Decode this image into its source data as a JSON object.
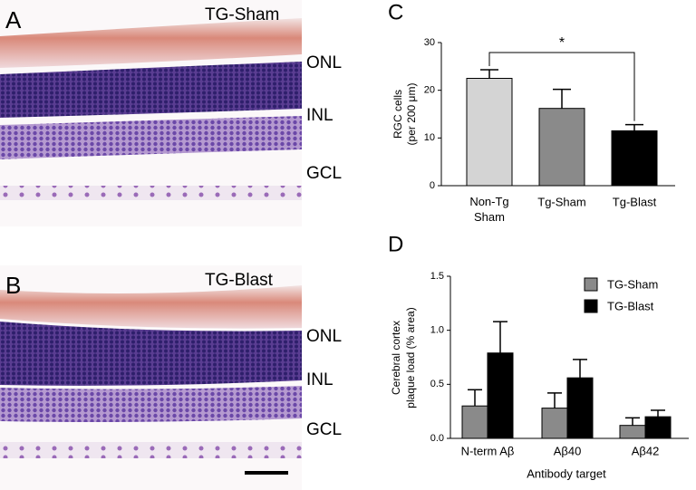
{
  "panels": [
    {
      "letter": "A",
      "condition": "TG-Sham",
      "layers": [
        "ONL",
        "INL",
        "GCL"
      ]
    },
    {
      "letter": "B",
      "condition": "TG-Blast",
      "layers": [
        "ONL",
        "INL",
        "GCL"
      ]
    }
  ],
  "chart_data": [
    {
      "type": "bar",
      "panel": "C",
      "ylabel": [
        "RGC cells",
        "(per 200 μm)"
      ],
      "categories": [
        "Non-Tg Sham",
        "Tg-Sham",
        "Tg-Blast"
      ],
      "values": [
        22.5,
        16.2,
        11.5
      ],
      "errors": [
        1.8,
        4.0,
        1.3
      ],
      "colors": [
        "#d4d4d4",
        "#8a8a8a",
        "#000000"
      ],
      "ylim": [
        0,
        30
      ],
      "yticks": [
        0,
        10,
        20,
        30
      ],
      "annotation": "*"
    },
    {
      "type": "grouped-bar",
      "panel": "D",
      "ylabel": [
        "Cerebral cortex",
        "plaque load (% area)"
      ],
      "xlabel": "Antibody target",
      "categories": [
        "N-term Aβ",
        "Aβ40",
        "Aβ42"
      ],
      "series": [
        {
          "name": "TG-Sham",
          "color": "#8a8a8a",
          "values": [
            0.3,
            0.28,
            0.12
          ],
          "errors": [
            0.15,
            0.14,
            0.07
          ]
        },
        {
          "name": "TG-Blast",
          "color": "#000000",
          "values": [
            0.79,
            0.56,
            0.2
          ],
          "errors": [
            0.29,
            0.17,
            0.06
          ]
        }
      ],
      "ylim": [
        0,
        1.5
      ],
      "yticks": [
        {
          "value": 0,
          "label": "0.0"
        },
        0.5,
        {
          "value": 1,
          "label": "1.0"
        },
        1.5
      ]
    }
  ]
}
